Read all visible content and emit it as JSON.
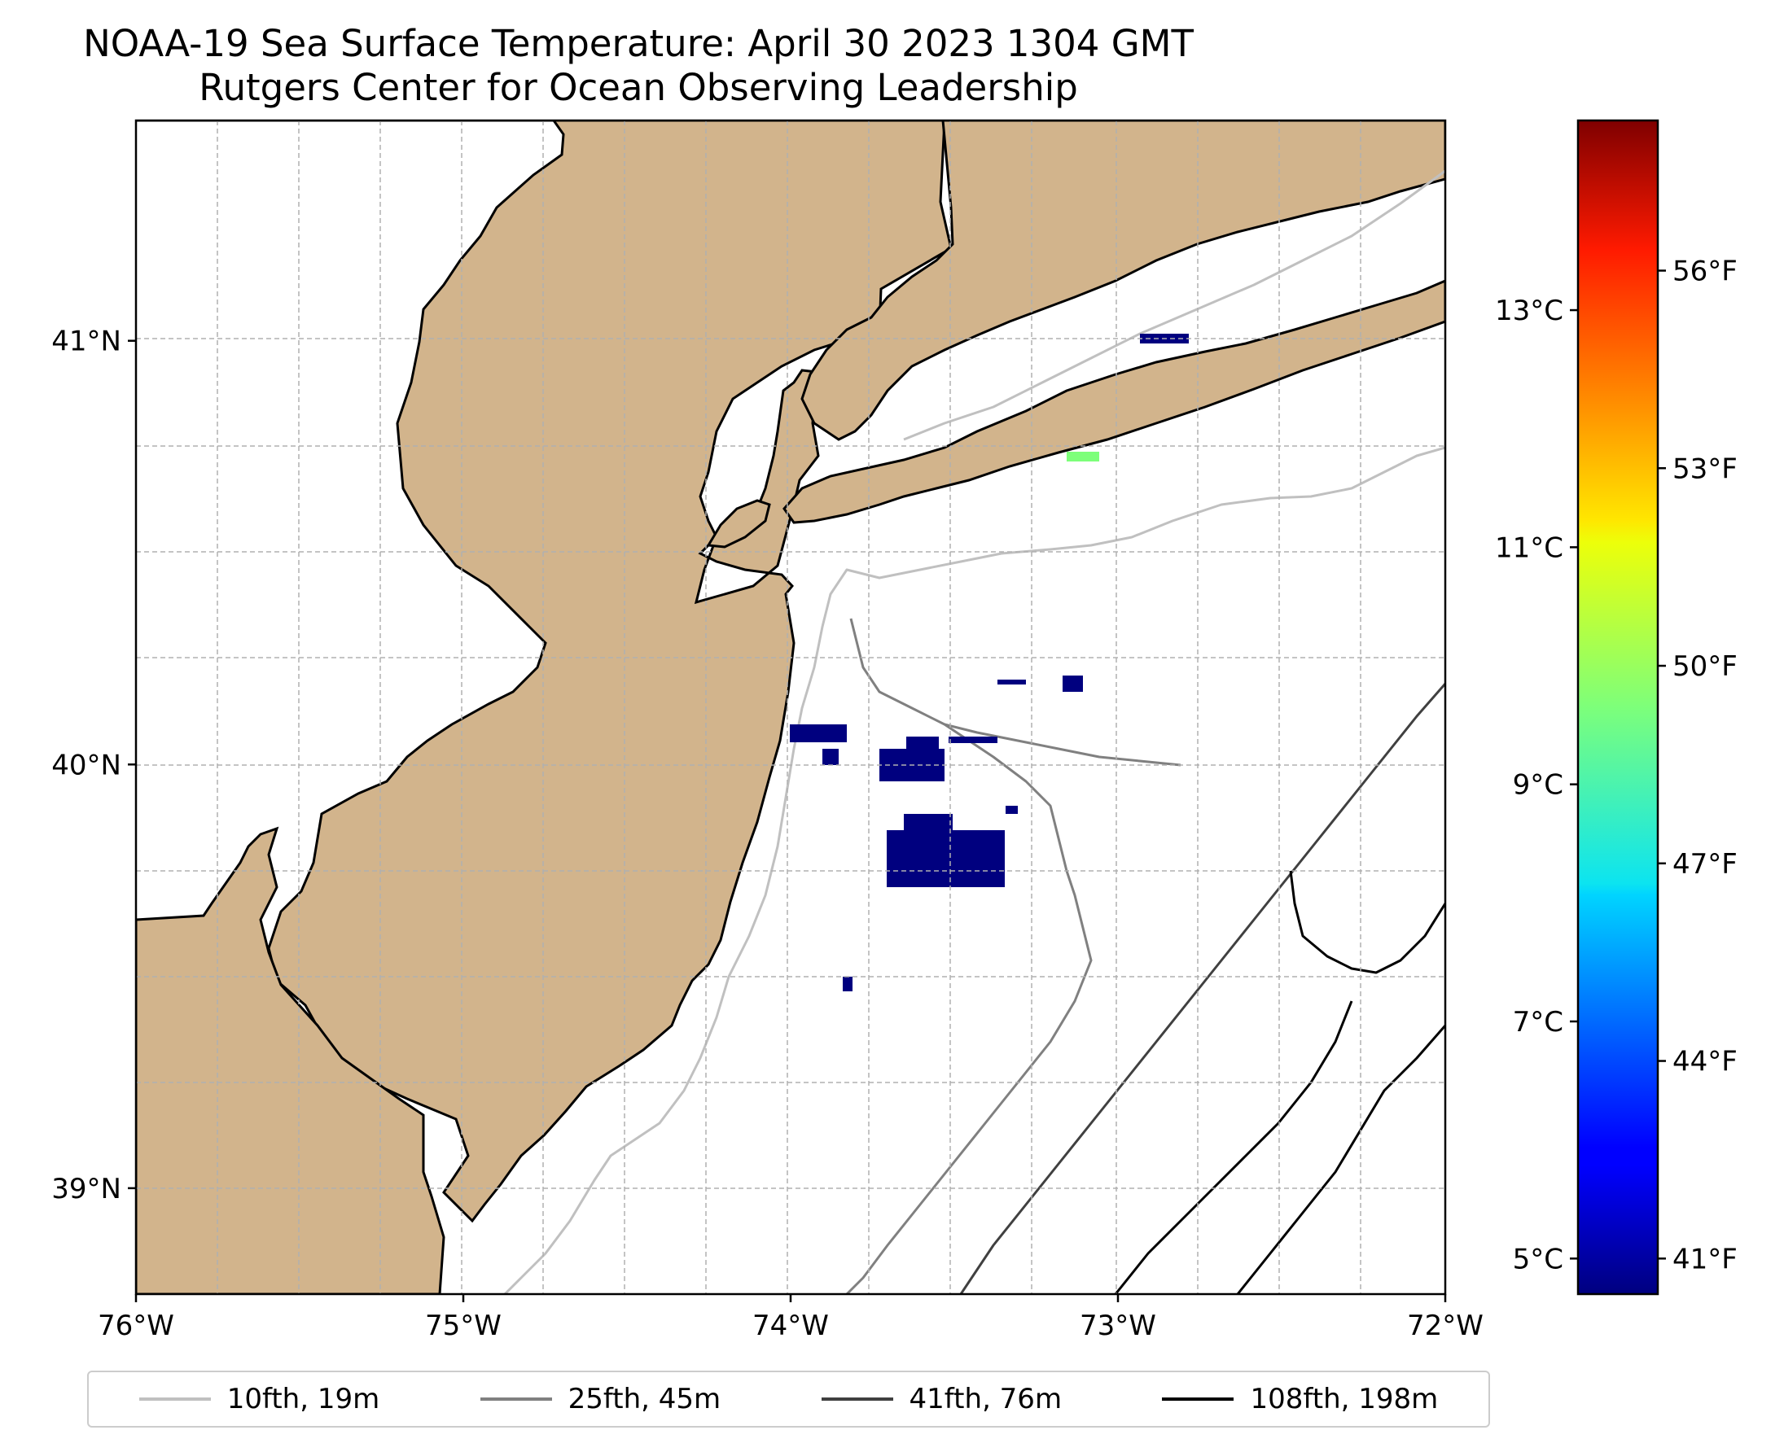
{
  "title": "NOAA-19 Sea Surface Temperature: April 30 2023 1304 GMT",
  "subtitle": "Rutgers Center for Ocean Observing Leadership",
  "map": {
    "extent": {
      "lon": [
        -76.0,
        -72.0
      ],
      "lat": [
        38.75,
        41.52
      ]
    },
    "lon_ticks": [
      -76,
      -75,
      -74,
      -73,
      -72
    ],
    "lon_labels": [
      "76°W",
      "75°W",
      "74°W",
      "73°W",
      "72°W"
    ],
    "lat_ticks": [
      41,
      40,
      39
    ],
    "lat_labels": [
      "41°N",
      "40°N",
      "39°N"
    ],
    "land_color": "#d2b48c",
    "water_color": "#ffffff",
    "gridlines": true
  },
  "colorbar": {
    "colormap": "jet",
    "celsius_labels": [
      "13°C",
      "11°C",
      "9°C",
      "7°C",
      "5°C"
    ],
    "celsius_values": [
      13,
      11,
      9,
      7,
      5
    ],
    "fahrenheit_labels": [
      "56°F",
      "53°F",
      "50°F",
      "47°F",
      "44°F",
      "41°F"
    ],
    "fahrenheit_values": [
      56,
      53,
      50,
      47,
      44,
      41
    ]
  },
  "legend": [
    {
      "label": "10fth, 19m",
      "color": "#c0c0c0"
    },
    {
      "label": "25fth, 45m",
      "color": "#808080"
    },
    {
      "label": "41fth, 76m",
      "color": "#404040"
    },
    {
      "label": "108fth, 198m",
      "color": "#000000"
    }
  ]
}
